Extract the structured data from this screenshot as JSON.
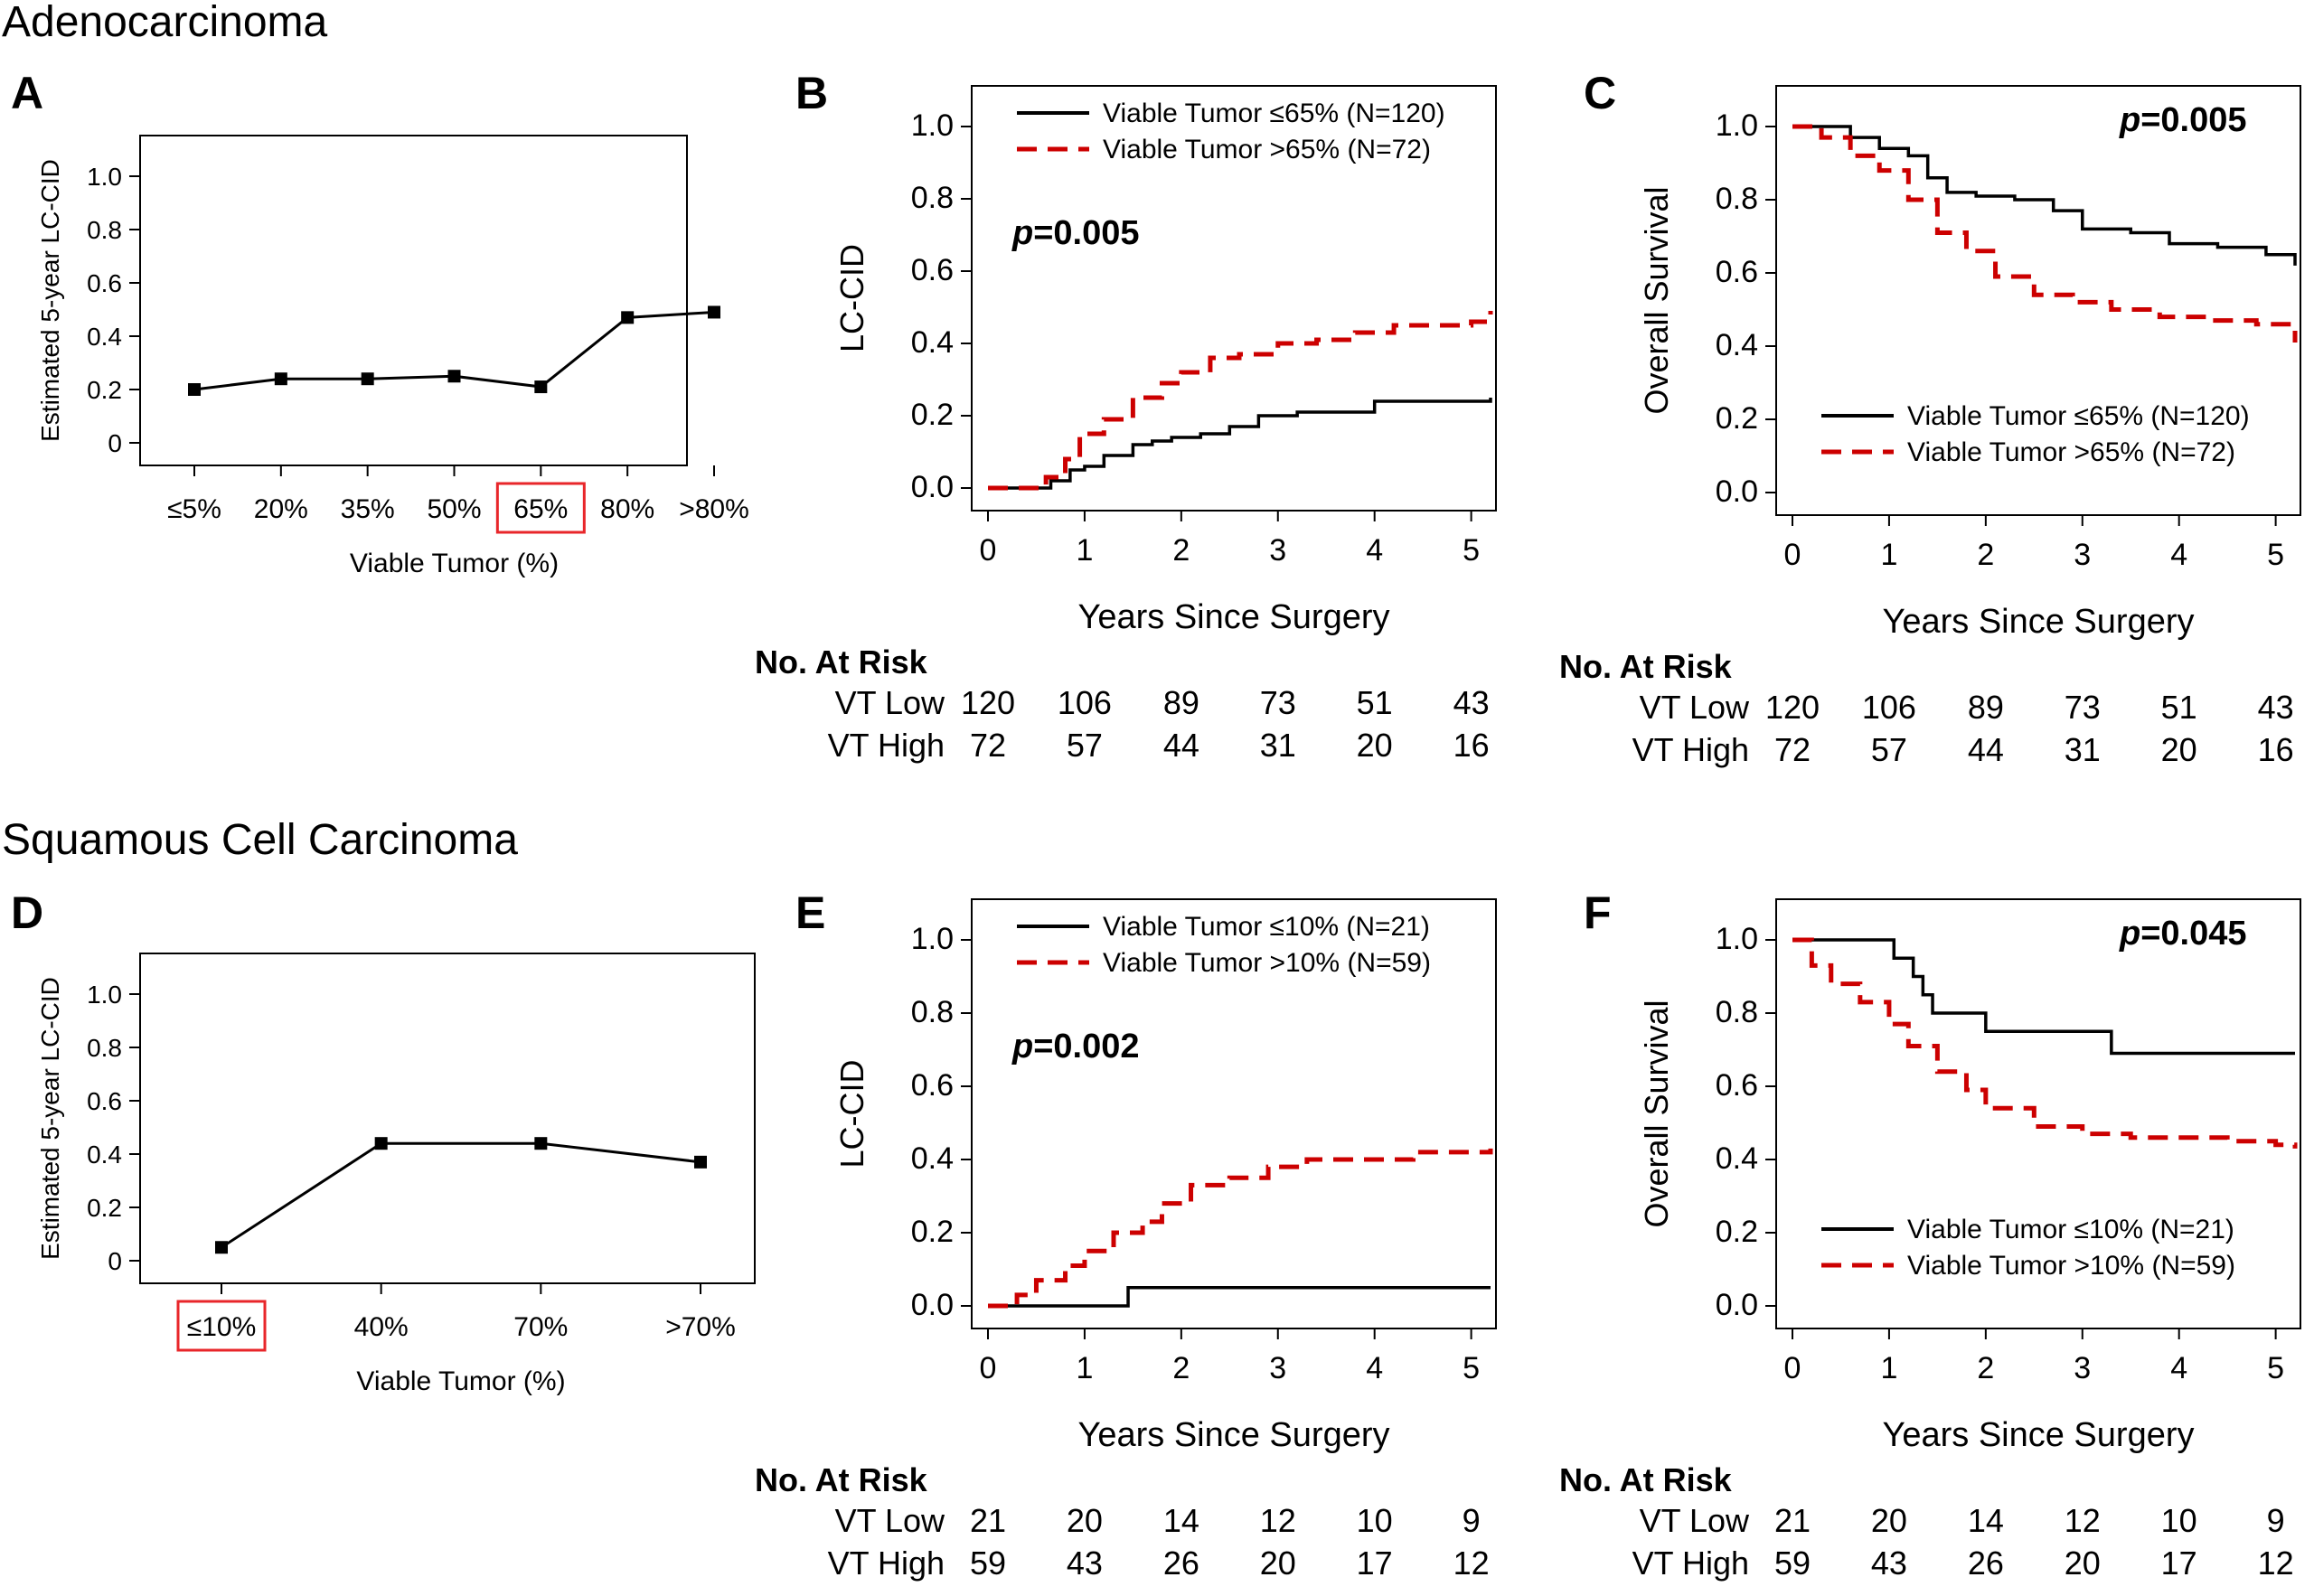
{
  "sections": {
    "top": "Adenocarcinoma",
    "bottom": "Squamous Cell Carcinoma"
  },
  "colors": {
    "low": "#000000",
    "high": "#cc0000",
    "highlight": "#e8262a"
  },
  "chart_data": [
    {
      "id": "A",
      "type": "line",
      "panel": "A",
      "title": "",
      "xlabel": "Viable Tumor (%)",
      "ylabel": "Estimated 5-year LC-CID",
      "categories": [
        "≤5%",
        "20%",
        "35%",
        "50%",
        "65%",
        "80%",
        ">80%"
      ],
      "values": [
        0.2,
        0.24,
        0.24,
        0.25,
        0.21,
        0.47,
        0.49
      ],
      "highlight_category": "65%",
      "ylim": [
        0,
        1.0
      ],
      "yticks": [
        "0",
        "0.2",
        "0.4",
        "0.6",
        "0.8",
        "1.0"
      ]
    },
    {
      "id": "B",
      "type": "line",
      "panel": "B",
      "title": "",
      "xlabel": "Years Since Surgery",
      "ylabel": "LC-CID",
      "xlim": [
        0,
        5.2
      ],
      "ylim": [
        0,
        1.0
      ],
      "xticks": [
        "0",
        "1",
        "2",
        "3",
        "4",
        "5"
      ],
      "yticks": [
        "0.0",
        "0.2",
        "0.4",
        "0.6",
        "0.8",
        "1.0"
      ],
      "pvalue": "=0.005",
      "pvalue_prefix": "p",
      "legend": "top-left",
      "series": [
        {
          "name": "Viable Tumor ≤65% (N=120)",
          "style": "solid",
          "x": [
            0,
            0.55,
            0.65,
            0.85,
            1.0,
            1.2,
            1.5,
            1.7,
            1.9,
            2.2,
            2.5,
            2.8,
            3.2,
            3.6,
            4.0,
            4.6,
            5.2
          ],
          "y": [
            0,
            0,
            0.02,
            0.05,
            0.06,
            0.09,
            0.12,
            0.13,
            0.14,
            0.15,
            0.17,
            0.2,
            0.21,
            0.21,
            0.24,
            0.24,
            0.25
          ]
        },
        {
          "name": "Viable Tumor >65% (N=72)",
          "style": "dashed",
          "x": [
            0,
            0.4,
            0.6,
            0.8,
            0.95,
            1.2,
            1.5,
            1.8,
            2.0,
            2.3,
            2.6,
            3.0,
            3.4,
            3.8,
            4.2,
            4.6,
            5.0,
            5.2
          ],
          "y": [
            0,
            0,
            0.03,
            0.08,
            0.15,
            0.19,
            0.25,
            0.29,
            0.32,
            0.36,
            0.37,
            0.4,
            0.41,
            0.43,
            0.45,
            0.45,
            0.46,
            0.49
          ]
        }
      ]
    },
    {
      "id": "C",
      "type": "line",
      "panel": "C",
      "title": "",
      "xlabel": "Years Since Surgery",
      "ylabel": "Overall Survival",
      "xlim": [
        0,
        5.2
      ],
      "ylim": [
        0,
        1.0
      ],
      "xticks": [
        "0",
        "1",
        "2",
        "3",
        "4",
        "5"
      ],
      "yticks": [
        "0.0",
        "0.2",
        "0.4",
        "0.6",
        "0.8",
        "1.0"
      ],
      "pvalue": "=0.005",
      "pvalue_prefix": "p",
      "legend": "bottom-right",
      "series": [
        {
          "name": "Viable Tumor ≤65% (N=120)",
          "style": "solid",
          "x": [
            0,
            0.3,
            0.6,
            0.9,
            1.2,
            1.4,
            1.6,
            1.9,
            2.3,
            2.7,
            3.0,
            3.5,
            3.9,
            4.4,
            4.9,
            5.2
          ],
          "y": [
            1.0,
            1.0,
            0.97,
            0.94,
            0.92,
            0.86,
            0.82,
            0.81,
            0.8,
            0.77,
            0.72,
            0.71,
            0.68,
            0.67,
            0.65,
            0.62
          ]
        },
        {
          "name": "Viable Tumor >65% (N=72)",
          "style": "dashed",
          "x": [
            0,
            0.3,
            0.6,
            0.9,
            1.2,
            1.5,
            1.8,
            2.1,
            2.5,
            2.9,
            3.3,
            3.8,
            4.3,
            4.8,
            5.2
          ],
          "y": [
            1.0,
            0.97,
            0.92,
            0.88,
            0.8,
            0.71,
            0.66,
            0.59,
            0.54,
            0.52,
            0.5,
            0.48,
            0.47,
            0.46,
            0.41
          ]
        }
      ]
    },
    {
      "id": "D",
      "type": "line",
      "panel": "D",
      "title": "",
      "xlabel": "Viable Tumor (%)",
      "ylabel": "Estimated 5-year LC-CID",
      "categories": [
        "≤10%",
        "40%",
        "70%",
        ">70%"
      ],
      "values": [
        0.05,
        0.44,
        0.44,
        0.37
      ],
      "highlight_category": "≤10%",
      "ylim": [
        0,
        1.0
      ],
      "yticks": [
        "0",
        "0.2",
        "0.4",
        "0.6",
        "0.8",
        "1.0"
      ]
    },
    {
      "id": "E",
      "type": "line",
      "panel": "E",
      "title": "",
      "xlabel": "Years Since Surgery",
      "ylabel": "LC-CID",
      "xlim": [
        0,
        5.2
      ],
      "ylim": [
        0,
        1.0
      ],
      "xticks": [
        "0",
        "1",
        "2",
        "3",
        "4",
        "5"
      ],
      "yticks": [
        "0.0",
        "0.2",
        "0.4",
        "0.6",
        "0.8",
        "1.0"
      ],
      "pvalue": "=0.002",
      "pvalue_prefix": "p",
      "legend": "top-left",
      "series": [
        {
          "name": "Viable Tumor ≤10% (N=21)",
          "style": "solid",
          "x": [
            0,
            1.45,
            1.45,
            5.2
          ],
          "y": [
            0,
            0,
            0.05,
            0.05
          ]
        },
        {
          "name": "Viable Tumor >10% (N=59)",
          "style": "dashed",
          "x": [
            0,
            0.3,
            0.5,
            0.8,
            1.0,
            1.3,
            1.6,
            1.8,
            2.1,
            2.5,
            2.9,
            3.3,
            3.9,
            4.4,
            5.2
          ],
          "y": [
            0,
            0.03,
            0.07,
            0.11,
            0.15,
            0.2,
            0.23,
            0.28,
            0.33,
            0.35,
            0.38,
            0.4,
            0.4,
            0.42,
            0.43
          ]
        }
      ]
    },
    {
      "id": "F",
      "type": "line",
      "panel": "F",
      "title": "",
      "xlabel": "Years Since Surgery",
      "ylabel": "Overall Survival",
      "xlim": [
        0,
        5.2
      ],
      "ylim": [
        0,
        1.0
      ],
      "xticks": [
        "0",
        "1",
        "2",
        "3",
        "4",
        "5"
      ],
      "yticks": [
        "0.0",
        "0.2",
        "0.4",
        "0.6",
        "0.8",
        "1.0"
      ],
      "pvalue": "=0.045",
      "pvalue_prefix": "p",
      "legend": "bottom-right",
      "series": [
        {
          "name": "Viable Tumor ≤10% (N=21)",
          "style": "solid",
          "x": [
            0,
            0.95,
            1.05,
            1.25,
            1.35,
            1.45,
            2.0,
            3.3,
            5.2
          ],
          "y": [
            1.0,
            1.0,
            0.95,
            0.9,
            0.85,
            0.8,
            0.75,
            0.69,
            0.69
          ]
        },
        {
          "name": "Viable Tumor >10% (N=59)",
          "style": "dashed",
          "x": [
            0,
            0.2,
            0.4,
            0.7,
            1.0,
            1.2,
            1.5,
            1.8,
            2.0,
            2.5,
            3.0,
            3.5,
            4.0,
            4.5,
            5.0,
            5.2
          ],
          "y": [
            1.0,
            0.93,
            0.88,
            0.83,
            0.77,
            0.71,
            0.64,
            0.59,
            0.54,
            0.49,
            0.47,
            0.46,
            0.46,
            0.45,
            0.44,
            0.43
          ]
        }
      ]
    }
  ],
  "risk_tables": [
    {
      "panel": "B",
      "header": "No. At Risk",
      "rows": [
        {
          "label": "VT Low",
          "values": [
            "120",
            "106",
            "89",
            "73",
            "51",
            "43"
          ]
        },
        {
          "label": "VT High",
          "values": [
            "72",
            "57",
            "44",
            "31",
            "20",
            "16"
          ]
        }
      ]
    },
    {
      "panel": "C",
      "header": "No. At Risk",
      "rows": [
        {
          "label": "VT Low",
          "values": [
            "120",
            "106",
            "89",
            "73",
            "51",
            "43"
          ]
        },
        {
          "label": "VT High",
          "values": [
            "72",
            "57",
            "44",
            "31",
            "20",
            "16"
          ]
        }
      ]
    },
    {
      "panel": "E",
      "header": "No. At Risk",
      "rows": [
        {
          "label": "VT Low",
          "values": [
            "21",
            "20",
            "14",
            "12",
            "10",
            "9"
          ]
        },
        {
          "label": "VT High",
          "values": [
            "59",
            "43",
            "26",
            "20",
            "17",
            "12"
          ]
        }
      ]
    },
    {
      "panel": "F",
      "header": "No. At Risk",
      "rows": [
        {
          "label": "VT Low",
          "values": [
            "21",
            "20",
            "14",
            "12",
            "10",
            "9"
          ]
        },
        {
          "label": "VT High",
          "values": [
            "59",
            "43",
            "26",
            "20",
            "17",
            "12"
          ]
        }
      ]
    }
  ]
}
